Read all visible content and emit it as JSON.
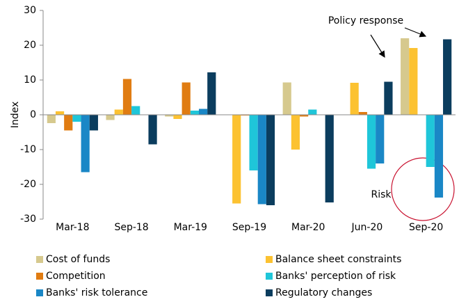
{
  "chart_data": {
    "type": "bar",
    "ylabel": "Index",
    "categories": [
      "Mar-18",
      "Sep-18",
      "Mar-19",
      "Sep-19",
      "Mar-20",
      "Jun-20",
      "Sep-20"
    ],
    "series": [
      {
        "name": "Cost of funds",
        "color": "#d6c98e",
        "values": [
          -2.4,
          -1.5,
          -0.5,
          0,
          9.3,
          0,
          22
        ]
      },
      {
        "name": "Balance sheet constraints",
        "color": "#fcc231",
        "values": [
          1,
          1.5,
          -1.2,
          -25.5,
          -10,
          9.2,
          19.2
        ]
      },
      {
        "name": "Competition",
        "color": "#e07c12",
        "values": [
          -4.5,
          10.3,
          9.3,
          -0.2,
          -0.5,
          0.8,
          0
        ]
      },
      {
        "name": "Banks' perception of risk",
        "color": "#1fc6d9",
        "values": [
          -2,
          2.5,
          1.2,
          -16,
          1.5,
          -15.5,
          -15
        ]
      },
      {
        "name": "Banks' risk tolerance",
        "color": "#1a87c6",
        "values": [
          -16.5,
          0,
          1.7,
          -25.7,
          0,
          -14,
          -23.8
        ]
      },
      {
        "name": "Regulatory changes",
        "color": "#0b3d5e",
        "values": [
          -4.5,
          -8.5,
          12.2,
          -26,
          -25.2,
          9.5,
          21.7
        ]
      }
    ],
    "ylim": [
      -30,
      30
    ],
    "yticks": [
      -30,
      -20,
      -10,
      0,
      10,
      20,
      30
    ],
    "annotations": [
      "Policy response",
      "Risk"
    ]
  }
}
